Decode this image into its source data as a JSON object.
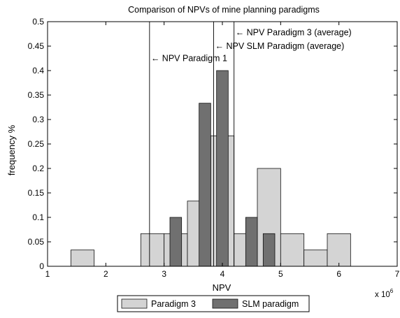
{
  "chart_data": {
    "type": "bar",
    "title": "Comparison of NPVs of mine planning paradigms",
    "xlabel": "NPV",
    "ylabel": "frequency %",
    "x_exponent_label": "x 10",
    "x_exponent_power": "6",
    "xlim": [
      1,
      7
    ],
    "ylim": [
      0,
      0.5
    ],
    "xticks": [
      1,
      2,
      3,
      4,
      5,
      6,
      7
    ],
    "xtick_labels": [
      "1",
      "2",
      "3",
      "4",
      "5",
      "6",
      "7"
    ],
    "yticks": [
      0,
      0.05,
      0.1,
      0.15,
      0.2,
      0.25,
      0.3,
      0.35,
      0.4,
      0.45,
      0.5
    ],
    "ytick_labels": [
      "0",
      "0.05",
      "0.1",
      "0.15",
      "0.2",
      "0.25",
      "0.3",
      "0.35",
      "0.4",
      "0.45",
      "0.5"
    ],
    "grid": false,
    "legend_position": "bottom-center",
    "series": [
      {
        "name": "Paradigm 3",
        "color": "#d4d4d4",
        "bins": [
          {
            "x0": 1.4,
            "x1": 1.8,
            "value": 0.0333
          },
          {
            "x0": 2.6,
            "x1": 3.0,
            "value": 0.0667
          },
          {
            "x0": 3.0,
            "x1": 3.4,
            "value": 0.0667
          },
          {
            "x0": 3.4,
            "x1": 3.8,
            "value": 0.1333
          },
          {
            "x0": 3.8,
            "x1": 4.2,
            "value": 0.2667
          },
          {
            "x0": 4.2,
            "x1": 4.6,
            "value": 0.0667
          },
          {
            "x0": 4.6,
            "x1": 5.0,
            "value": 0.2
          },
          {
            "x0": 5.0,
            "x1": 5.4,
            "value": 0.0667
          },
          {
            "x0": 5.4,
            "x1": 5.8,
            "value": 0.0333
          },
          {
            "x0": 5.8,
            "x1": 6.2,
            "value": 0.0667
          }
        ]
      },
      {
        "name": "SLM paradigm",
        "color": "#707070",
        "bins": [
          {
            "x0": 3.1,
            "x1": 3.3,
            "value": 0.1
          },
          {
            "x0": 3.6,
            "x1": 3.8,
            "value": 0.3333
          },
          {
            "x0": 3.9,
            "x1": 4.1,
            "value": 0.4
          },
          {
            "x0": 4.4,
            "x1": 4.6,
            "value": 0.1
          },
          {
            "x0": 4.7,
            "x1": 4.9,
            "value": 0.0667
          }
        ]
      }
    ],
    "reference_lines": [
      {
        "x": 2.75,
        "label": "← NPV Paradigm 1",
        "label_y": 0.425
      },
      {
        "x": 3.85,
        "label": "← NPV SLM Paradigm (average)",
        "label_y": 0.45
      },
      {
        "x": 4.2,
        "label": "← NPV Paradigm 3 (average)",
        "label_y": 0.478
      }
    ]
  }
}
